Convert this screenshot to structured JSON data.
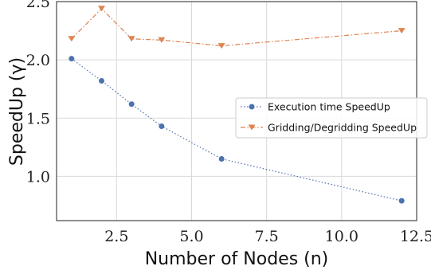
{
  "chart_data": {
    "type": "line",
    "title": "",
    "xlabel": "Number of Nodes (n)",
    "ylabel": "SpeedUp (γ)",
    "x": [
      1,
      2,
      3,
      4,
      6,
      12
    ],
    "xlim": [
      0.5,
      12.5
    ],
    "ylim": [
      0.62,
      2.5
    ],
    "xticks": [
      2.5,
      5.0,
      7.5,
      10.0,
      12.5
    ],
    "xtick_labels": [
      "2.5",
      "5.0",
      "7.5",
      "10.0",
      "12.5"
    ],
    "yticks": [
      1.0,
      1.5,
      2.0,
      2.5
    ],
    "ytick_labels": [
      "1.0",
      "1.5",
      "2.0",
      "2.5"
    ],
    "grid": true,
    "legend_position": "center-right",
    "series": [
      {
        "name": "Execution time SpeedUp",
        "values": [
          2.01,
          1.82,
          1.62,
          1.43,
          1.15,
          0.79
        ],
        "color": "#4c72b0",
        "marker": "circle",
        "linestyle": "dotted"
      },
      {
        "name": "Gridding/Degridding SpeedUp",
        "values": [
          2.18,
          2.44,
          2.18,
          2.17,
          2.12,
          2.25
        ],
        "color": "#dd8452",
        "marker": "triangle-down",
        "linestyle": "dashdot"
      }
    ]
  }
}
